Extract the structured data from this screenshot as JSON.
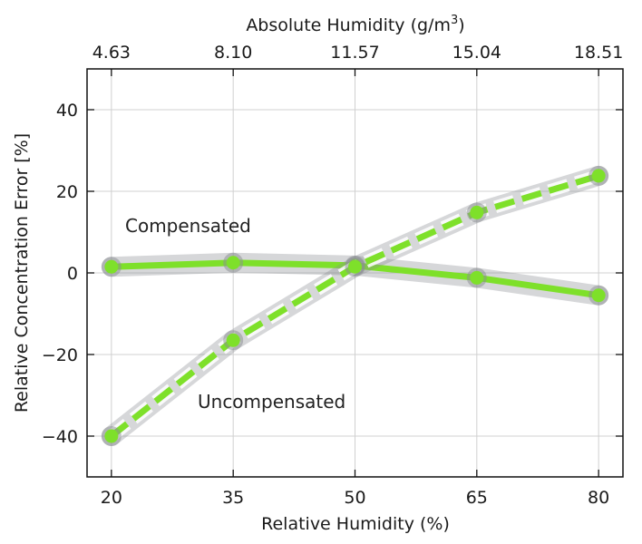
{
  "chart_data": {
    "type": "line",
    "xlabel": "Relative Humidity (%)",
    "x2label": "Absolute Humidity (g/m",
    "x2label_sup": "3",
    "x2label_tail": ")",
    "ylabel": "Relative Concentration Error [%]",
    "x": [
      20,
      35,
      50,
      65,
      80
    ],
    "x_tick_labels": [
      "20",
      "35",
      "50",
      "65",
      "80"
    ],
    "x2_tick_labels": [
      "4.63",
      "8.10",
      "11.57",
      "15.04",
      "18.51"
    ],
    "xlim": [
      17,
      83
    ],
    "ylim": [
      -50,
      50
    ],
    "y_ticks": [
      -40,
      -20,
      0,
      20,
      40
    ],
    "y_tick_labels": [
      "−40",
      "−20",
      "0",
      "20",
      "40"
    ],
    "grid": true,
    "series": [
      {
        "name": "Compensated",
        "values": [
          1.5,
          2.5,
          1.8,
          -1.2,
          -5.5
        ],
        "style": "solid",
        "color": "#7ee02a"
      },
      {
        "name": "Uncompensated",
        "values": [
          -40,
          -16.5,
          1.5,
          14.8,
          23.8
        ],
        "style": "dashed",
        "color": "#7ee02a"
      }
    ],
    "shadow_color": "#8a8d91"
  }
}
